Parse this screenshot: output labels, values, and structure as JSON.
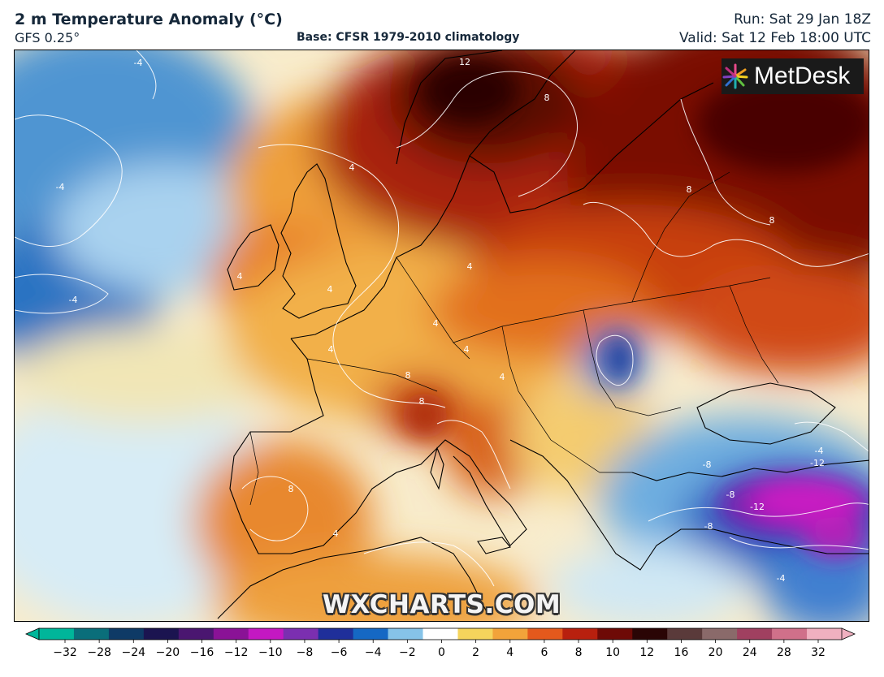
{
  "header": {
    "title": "2 m Temperature Anomaly (°C)",
    "model": "GFS 0.25°",
    "base": "Base: CFSR 1979-2010 climatology",
    "run": "Run: Sat 29 Jan 18Z",
    "valid": "Valid: Sat 12 Feb 18:00 UTC"
  },
  "logo": {
    "text": "MetDesk"
  },
  "watermark": "WXCHARTS.COM",
  "colorbar": {
    "ticks": [
      "−32",
      "−28",
      "−24",
      "−20",
      "−16",
      "−12",
      "−10",
      "−8",
      "−6",
      "−4",
      "−2",
      "0",
      "2",
      "4",
      "6",
      "8",
      "10",
      "12",
      "16",
      "20",
      "24",
      "28",
      "32"
    ],
    "colors": [
      "#00b69a",
      "#0a6e7a",
      "#0e3a66",
      "#1b1450",
      "#4a1670",
      "#8a1296",
      "#c418c2",
      "#7b2fb0",
      "#1f2f9a",
      "#1568c4",
      "#86c3e8",
      "#ffffff",
      "#f5d45c",
      "#f2a33a",
      "#e4591c",
      "#b8200e",
      "#6e0a06",
      "#2a0505",
      "#5a3a3a",
      "#8a6a6a",
      "#a04060",
      "#d0708a",
      "#f0b0c0"
    ]
  },
  "map_labels": [
    {
      "text": "-4",
      "kind": "contour"
    },
    {
      "text": "-4",
      "kind": "contour"
    },
    {
      "text": "-4",
      "kind": "contour"
    },
    {
      "text": "4",
      "kind": "contour"
    },
    {
      "text": "4",
      "kind": "contour"
    },
    {
      "text": "4",
      "kind": "contour"
    },
    {
      "text": "4",
      "kind": "contour"
    },
    {
      "text": "4",
      "kind": "contour"
    },
    {
      "text": "4",
      "kind": "contour"
    },
    {
      "text": "4",
      "kind": "contour"
    },
    {
      "text": "4",
      "kind": "contour"
    },
    {
      "text": "4",
      "kind": "contour"
    },
    {
      "text": "8",
      "kind": "contour"
    },
    {
      "text": "8",
      "kind": "contour"
    },
    {
      "text": "8",
      "kind": "contour"
    },
    {
      "text": "8",
      "kind": "contour"
    },
    {
      "text": "8",
      "kind": "contour"
    },
    {
      "text": "8",
      "kind": "contour"
    },
    {
      "text": "12",
      "kind": "contour"
    },
    {
      "text": "-4",
      "kind": "contour"
    },
    {
      "text": "-8",
      "kind": "contour"
    },
    {
      "text": "-8",
      "kind": "contour"
    },
    {
      "text": "-12",
      "kind": "contour"
    },
    {
      "text": "-12",
      "kind": "contour"
    },
    {
      "text": "-8",
      "kind": "contour"
    },
    {
      "text": "-4",
      "kind": "contour"
    }
  ]
}
